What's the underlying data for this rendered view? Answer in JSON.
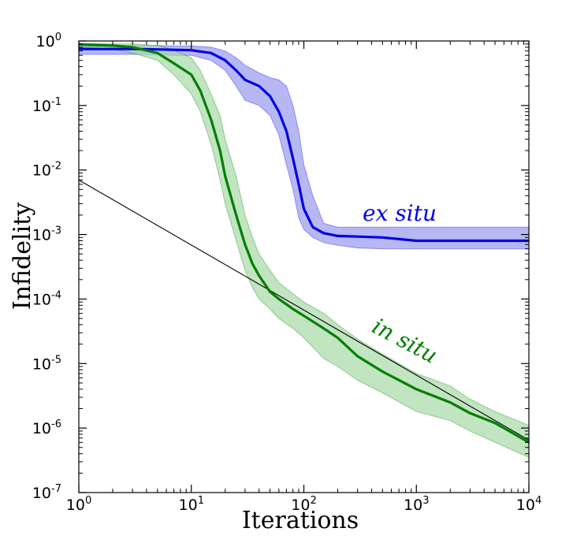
{
  "chart_data": {
    "type": "line",
    "title": "",
    "xlabel": "Iterations",
    "ylabel": "Infidelity",
    "x_scale": "log",
    "y_scale": "log",
    "xlim": [
      1,
      10000
    ],
    "ylim": [
      1e-07,
      1
    ],
    "x_ticks": [
      {
        "value": 1,
        "base": "10",
        "exp": "0"
      },
      {
        "value": 10,
        "base": "10",
        "exp": "1"
      },
      {
        "value": 100,
        "base": "10",
        "exp": "2"
      },
      {
        "value": 1000,
        "base": "10",
        "exp": "3"
      },
      {
        "value": 10000,
        "base": "10",
        "exp": "4"
      }
    ],
    "y_ticks": [
      {
        "value": 1,
        "base": "10",
        "exp": "0"
      },
      {
        "value": 0.1,
        "base": "10",
        "exp": "-1"
      },
      {
        "value": 0.01,
        "base": "10",
        "exp": "-2"
      },
      {
        "value": 0.001,
        "base": "10",
        "exp": "-3"
      },
      {
        "value": 0.0001,
        "base": "10",
        "exp": "-4"
      },
      {
        "value": 1e-05,
        "base": "10",
        "exp": "-5"
      },
      {
        "value": 1e-06,
        "base": "10",
        "exp": "-6"
      },
      {
        "value": 1e-07,
        "base": "10",
        "exp": "-7"
      }
    ],
    "grid": false,
    "series": [
      {
        "name": "ex situ",
        "color": "#0000e6",
        "band_color": "#9999ee",
        "x": [
          1,
          3,
          5,
          7,
          10,
          15,
          20,
          25,
          30,
          40,
          50,
          60,
          70,
          80,
          90,
          100,
          120,
          150,
          200,
          300,
          500,
          1000,
          10000
        ],
        "y": [
          0.75,
          0.75,
          0.74,
          0.73,
          0.72,
          0.65,
          0.5,
          0.35,
          0.25,
          0.2,
          0.14,
          0.08,
          0.04,
          0.015,
          0.006,
          0.0025,
          0.0013,
          0.00105,
          0.00095,
          0.00093,
          0.0009,
          0.0008,
          0.0008
        ],
        "lower": [
          0.62,
          0.62,
          0.61,
          0.6,
          0.6,
          0.5,
          0.35,
          0.2,
          0.12,
          0.1,
          0.07,
          0.035,
          0.012,
          0.005,
          0.0018,
          0.0012,
          0.0009,
          0.00075,
          0.00068,
          0.00062,
          0.0006,
          0.0006,
          0.0006
        ],
        "upper": [
          0.85,
          0.85,
          0.85,
          0.84,
          0.84,
          0.8,
          0.7,
          0.55,
          0.42,
          0.32,
          0.27,
          0.25,
          0.2,
          0.1,
          0.04,
          0.012,
          0.004,
          0.0015,
          0.0013,
          0.0013,
          0.0013,
          0.0013,
          0.0013
        ]
      },
      {
        "name": "in situ",
        "color": "#007f00",
        "band_color": "#a6d9a6",
        "x": [
          1,
          2,
          3,
          5,
          7,
          10,
          12,
          15,
          18,
          20,
          25,
          30,
          35,
          40,
          50,
          60,
          80,
          100,
          150,
          200,
          300,
          500,
          1000,
          2000,
          3000,
          5000,
          10000
        ],
        "y": [
          0.88,
          0.85,
          0.8,
          0.65,
          0.45,
          0.3,
          0.17,
          0.06,
          0.02,
          0.008,
          0.002,
          0.0007,
          0.00035,
          0.00023,
          0.00013,
          0.0001,
          7e-05,
          5.5e-05,
          3.5e-05,
          2.5e-05,
          1.3e-05,
          7.5e-06,
          4e-06,
          2.5e-06,
          1.7e-06,
          1.2e-06,
          6e-07
        ],
        "lower": [
          0.8,
          0.75,
          0.65,
          0.5,
          0.3,
          0.15,
          0.08,
          0.025,
          0.007,
          0.003,
          0.0008,
          0.00028,
          0.00015,
          0.0001,
          7e-05,
          5e-05,
          3.5e-05,
          2.5e-05,
          1.2e-05,
          9e-06,
          5.5e-06,
          3.5e-06,
          1.8e-06,
          1.3e-06,
          9e-07,
          6e-07,
          3.5e-07
        ],
        "upper": [
          0.92,
          0.9,
          0.9,
          0.85,
          0.72,
          0.55,
          0.35,
          0.15,
          0.07,
          0.03,
          0.008,
          0.002,
          0.0009,
          0.0005,
          0.00028,
          0.00018,
          0.00012,
          9e-05,
          6e-05,
          4e-05,
          2.4e-05,
          1.4e-05,
          7e-06,
          4.5e-06,
          2.8e-06,
          1.8e-06,
          1.1e-06
        ]
      }
    ],
    "reference_line": {
      "color": "#000000",
      "x": [
        1,
        10000
      ],
      "y": [
        0.007,
        6.5e-07
      ]
    }
  }
}
